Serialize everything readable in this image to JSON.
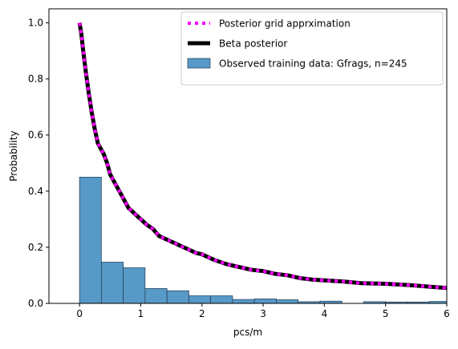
{
  "chart_data": {
    "type": "bar",
    "xlabel": "pcs/m",
    "ylabel": "Probability",
    "xlim": [
      -0.5,
      6
    ],
    "ylim": [
      0,
      1.05
    ],
    "xticks": [
      0,
      1,
      2,
      3,
      4,
      5,
      6
    ],
    "yticks": [
      0.0,
      0.2,
      0.4,
      0.6,
      0.8,
      1.0
    ],
    "xtick_labels": [
      "0",
      "1",
      "2",
      "3",
      "4",
      "5",
      "6"
    ],
    "ytick_labels": [
      "0.0",
      "0.2",
      "0.4",
      "0.6",
      "0.8",
      "1.0"
    ],
    "grid": false,
    "legend": {
      "placement": "top-right",
      "entries": [
        {
          "label": "Posterior grid apprximation",
          "kind": "dotted-line",
          "color": "#ff00ff"
        },
        {
          "label": "Beta posterior",
          "kind": "line",
          "color": "#000000"
        },
        {
          "label": "Observed training data: Gfrags, n=245",
          "kind": "patch",
          "color": "#5799c7"
        }
      ]
    },
    "histogram": {
      "name": "Observed training data: Gfrags, n=245",
      "color": "#5799c7",
      "edge_color": "#1f3a52",
      "bin_edges": [
        0,
        0.357,
        0.714,
        1.071,
        1.429,
        1.786,
        2.143,
        2.5,
        2.857,
        3.214,
        3.571,
        3.929,
        4.286,
        4.643,
        5.0,
        5.357,
        5.714,
        6.071
      ],
      "values": [
        0.45,
        0.147,
        0.127,
        0.053,
        0.045,
        0.027,
        0.027,
        0.014,
        0.016,
        0.013,
        0.006,
        0.008,
        0.0,
        0.006,
        0.005,
        0.005,
        0.007
      ]
    },
    "series": [
      {
        "name": "Beta posterior",
        "style": "solid",
        "color": "#000000",
        "x": [
          0,
          0.03,
          0.06,
          0.1,
          0.15,
          0.2,
          0.25,
          0.3,
          0.35,
          0.4,
          0.45,
          0.5,
          0.55,
          0.6,
          0.65,
          0.7,
          0.75,
          0.8,
          0.85,
          0.9,
          0.95,
          1.0,
          1.1,
          1.2,
          1.3,
          1.4,
          1.5,
          1.6,
          1.7,
          1.8,
          1.9,
          2.0,
          2.2,
          2.4,
          2.6,
          2.8,
          3.0,
          3.2,
          3.4,
          3.6,
          3.8,
          4.0,
          4.3,
          4.6,
          5.0,
          5.4,
          5.8,
          6.0
        ],
        "y": [
          1.0,
          0.96,
          0.9,
          0.83,
          0.75,
          0.68,
          0.62,
          0.57,
          0.55,
          0.53,
          0.5,
          0.46,
          0.44,
          0.42,
          0.4,
          0.38,
          0.36,
          0.34,
          0.33,
          0.32,
          0.31,
          0.3,
          0.28,
          0.265,
          0.24,
          0.23,
          0.22,
          0.21,
          0.2,
          0.19,
          0.18,
          0.175,
          0.155,
          0.14,
          0.13,
          0.12,
          0.115,
          0.105,
          0.1,
          0.09,
          0.085,
          0.082,
          0.078,
          0.072,
          0.07,
          0.065,
          0.058,
          0.055
        ]
      },
      {
        "name": "Posterior grid apprximation",
        "style": "dotted",
        "color": "#ff00ff",
        "x": [
          0,
          0.03,
          0.06,
          0.1,
          0.15,
          0.2,
          0.25,
          0.3,
          0.35,
          0.4,
          0.45,
          0.5,
          0.55,
          0.6,
          0.65,
          0.7,
          0.75,
          0.8,
          0.85,
          0.9,
          0.95,
          1.0,
          1.1,
          1.2,
          1.3,
          1.4,
          1.5,
          1.6,
          1.7,
          1.8,
          1.9,
          2.0,
          2.2,
          2.4,
          2.6,
          2.8,
          3.0,
          3.2,
          3.4,
          3.6,
          3.8,
          4.0,
          4.3,
          4.6,
          5.0,
          5.4,
          5.8,
          6.0
        ],
        "y": [
          1.0,
          0.96,
          0.9,
          0.83,
          0.75,
          0.68,
          0.62,
          0.57,
          0.55,
          0.53,
          0.5,
          0.46,
          0.44,
          0.42,
          0.4,
          0.38,
          0.36,
          0.34,
          0.33,
          0.32,
          0.31,
          0.3,
          0.28,
          0.265,
          0.24,
          0.23,
          0.22,
          0.21,
          0.2,
          0.19,
          0.18,
          0.175,
          0.155,
          0.14,
          0.13,
          0.12,
          0.115,
          0.105,
          0.1,
          0.09,
          0.085,
          0.082,
          0.078,
          0.072,
          0.07,
          0.065,
          0.058,
          0.055
        ]
      }
    ]
  }
}
